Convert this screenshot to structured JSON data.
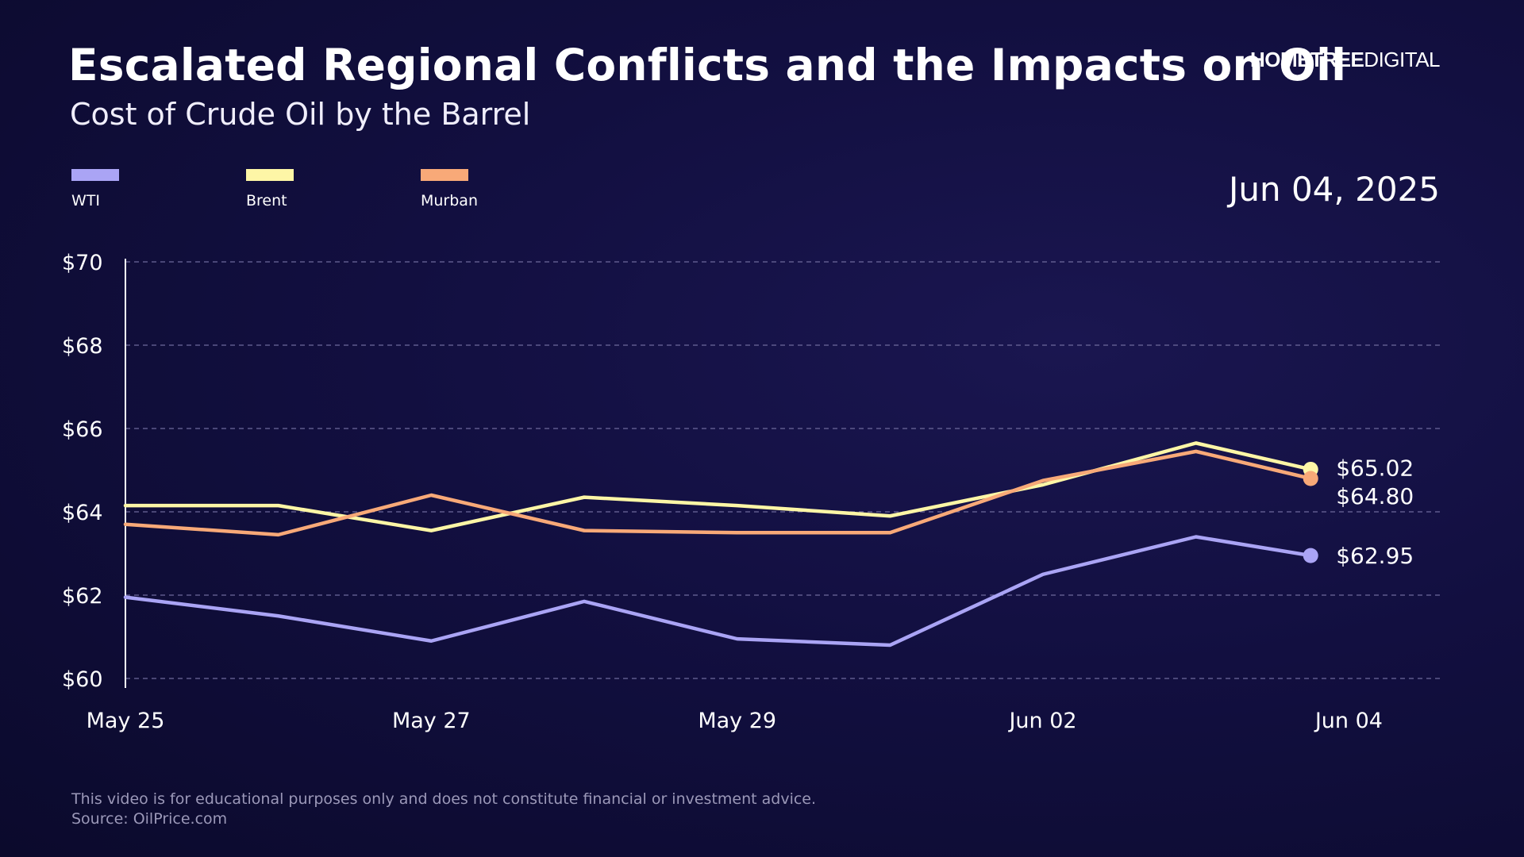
{
  "header": {
    "title": "Escalated Regional Conflicts and the Impacts on Oil",
    "subtitle": "Cost of Crude Oil by the Barrel",
    "brand_bold": "HOMETREE",
    "brand_light": "DIGITAL",
    "date": "Jun 04, 2025"
  },
  "legend": [
    {
      "name": "WTI",
      "color": "#aaa4f5"
    },
    {
      "name": "Brent",
      "color": "#fdf6a6"
    },
    {
      "name": "Murban",
      "color": "#f8a978"
    }
  ],
  "footer": {
    "disclaimer": "This video is for educational purposes only and does not constitute financial or investment advice.",
    "source": "Source: OilPrice.com"
  },
  "chart_data": {
    "type": "line",
    "title": "Cost of Crude Oil by the Barrel",
    "xlabel": "",
    "ylabel": "",
    "x": [
      0,
      1,
      2,
      3,
      4,
      5,
      6,
      7,
      7.75
    ],
    "x_ticks": [
      {
        "value": 0,
        "label": "May 25"
      },
      {
        "value": 2,
        "label": "May 27"
      },
      {
        "value": 4,
        "label": "May 29"
      },
      {
        "value": 6,
        "label": "Jun 02"
      },
      {
        "value": 8,
        "label": "Jun 04"
      }
    ],
    "xlim": [
      0,
      8.6
    ],
    "ylim": [
      60,
      70
    ],
    "y_ticks": [
      {
        "value": 70,
        "label": "$70"
      },
      {
        "value": 68,
        "label": "$68"
      },
      {
        "value": 66,
        "label": "$66"
      },
      {
        "value": 64,
        "label": "$64"
      },
      {
        "value": 62,
        "label": "$62"
      },
      {
        "value": 60,
        "label": "$60"
      }
    ],
    "grid": true,
    "series": [
      {
        "name": "WTI",
        "color": "#aaa4f5",
        "values": [
          61.95,
          61.5,
          60.9,
          61.85,
          60.95,
          60.8,
          62.5,
          63.4,
          62.95
        ],
        "end_label": "$62.95"
      },
      {
        "name": "Brent",
        "color": "#fdf6a6",
        "values": [
          64.15,
          64.15,
          63.55,
          64.35,
          64.15,
          63.9,
          64.65,
          65.65,
          65.02
        ],
        "end_label": "$65.02"
      },
      {
        "name": "Murban",
        "color": "#f8a978",
        "values": [
          63.7,
          63.45,
          64.4,
          63.55,
          63.5,
          63.5,
          64.75,
          65.45,
          64.8
        ],
        "end_label": "$64.80"
      }
    ]
  }
}
